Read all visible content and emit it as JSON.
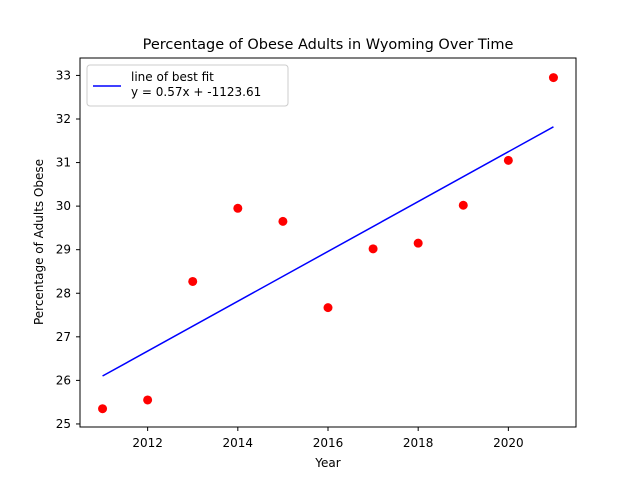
{
  "chart_data": {
    "type": "scatter",
    "title": "Percentage of Obese Adults in Wyoming Over Time",
    "xlabel": "Year",
    "ylabel": "Percentage of Adults Obese",
    "xlim": [
      2010.5,
      2021.5
    ],
    "ylim": [
      24.93,
      33.4
    ],
    "xticks": [
      2012,
      2014,
      2016,
      2018,
      2020
    ],
    "yticks": [
      25,
      26,
      27,
      28,
      29,
      30,
      31,
      32,
      33
    ],
    "grid": false,
    "legend_position": "upper-left",
    "series": [
      {
        "kind": "scatter",
        "color": "#ff0000",
        "points": [
          {
            "x": 2011,
            "y": 25.35
          },
          {
            "x": 2012,
            "y": 25.55
          },
          {
            "x": 2013,
            "y": 28.27
          },
          {
            "x": 2014,
            "y": 29.95
          },
          {
            "x": 2015,
            "y": 29.65
          },
          {
            "x": 2016,
            "y": 27.67
          },
          {
            "x": 2017,
            "y": 29.02
          },
          {
            "x": 2018,
            "y": 29.15
          },
          {
            "x": 2019,
            "y": 30.02
          },
          {
            "x": 2020,
            "y": 31.05
          },
          {
            "x": 2021,
            "y": 32.95
          }
        ]
      },
      {
        "kind": "line",
        "name": "line of best fit",
        "equation": "y = 0.57x + -1123.61",
        "color": "#0000ff",
        "points": [
          {
            "x": 2011,
            "y": 26.1
          },
          {
            "x": 2021,
            "y": 31.82
          }
        ]
      }
    ]
  }
}
